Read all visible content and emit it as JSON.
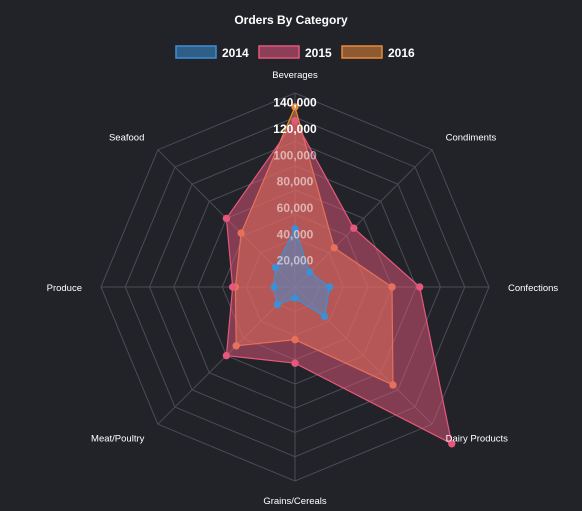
{
  "chart_data": {
    "type": "radar",
    "title": "Orders By Category",
    "categories": [
      "Beverages",
      "Condiments",
      "Confections",
      "Dairy Products",
      "Grains/Cereals",
      "Meat/Poultry",
      "Produce",
      "Seafood"
    ],
    "r_ticks": [
      "20,000",
      "40,000",
      "60,000",
      "80,000",
      "100,000",
      "120,000",
      "140,000"
    ],
    "r_max": 140000,
    "legend_position": "top",
    "series": [
      {
        "name": "2016",
        "color": "#e8893a",
        "values": [
          130000,
          40000,
          70000,
          100000,
          38000,
          60000,
          43000,
          55000
        ]
      },
      {
        "name": "2015",
        "color": "#e5577c",
        "values": [
          120000,
          60000,
          90000,
          160000,
          55000,
          70000,
          45000,
          70000
        ]
      },
      {
        "name": "2014",
        "color": "#3d8fd6",
        "values": [
          42000,
          15000,
          25000,
          30000,
          8000,
          18000,
          15000,
          20000
        ]
      }
    ],
    "legend_order": [
      "2014",
      "2015",
      "2016"
    ]
  }
}
